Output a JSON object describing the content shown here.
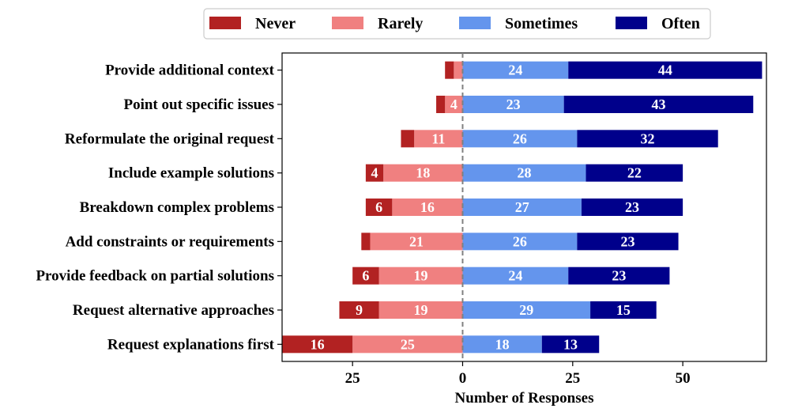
{
  "chart_data": {
    "type": "diverging-stacked-bar",
    "title": "",
    "xlabel": "Number of Responses",
    "ylabel": "",
    "xlim": [
      -41,
      69
    ],
    "xticks": [
      {
        "value": -25,
        "label": "25"
      },
      {
        "value": 0,
        "label": "0"
      },
      {
        "value": 25,
        "label": "25"
      },
      {
        "value": 50,
        "label": "50"
      }
    ],
    "legend": {
      "placement": "top-center",
      "entries": [
        {
          "name": "Never",
          "color": "#b22222"
        },
        {
          "name": "Rarely",
          "color": "#f08080"
        },
        {
          "name": "Sometimes",
          "color": "#6495ed"
        },
        {
          "name": "Often",
          "color": "#00008b"
        }
      ]
    },
    "categories": [
      "Provide additional context",
      "Point out specific issues",
      "Reformulate the original request",
      "Include example solutions",
      "Breakdown complex problems",
      "Add constraints or requirements",
      "Provide feedback on partial solutions",
      "Request alternative approaches",
      "Request explanations first"
    ],
    "series": [
      {
        "name": "Never",
        "color": "#b22222",
        "values": [
          2,
          2,
          3,
          4,
          6,
          2,
          6,
          9,
          16
        ],
        "show_labels": [
          false,
          false,
          false,
          true,
          true,
          false,
          true,
          true,
          true
        ]
      },
      {
        "name": "Rarely",
        "color": "#f08080",
        "values": [
          2,
          4,
          11,
          18,
          16,
          21,
          19,
          19,
          25
        ],
        "show_labels": [
          false,
          true,
          true,
          true,
          true,
          true,
          true,
          true,
          true
        ]
      },
      {
        "name": "Sometimes",
        "color": "#6495ed",
        "values": [
          24,
          23,
          26,
          28,
          27,
          26,
          24,
          29,
          18
        ],
        "show_labels": [
          true,
          true,
          true,
          true,
          true,
          true,
          true,
          true,
          true
        ]
      },
      {
        "name": "Often",
        "color": "#00008b",
        "values": [
          44,
          43,
          32,
          22,
          23,
          23,
          23,
          15,
          13
        ],
        "show_labels": [
          true,
          true,
          true,
          true,
          true,
          true,
          true,
          true,
          true
        ]
      }
    ],
    "negative_series": [
      "Never",
      "Rarely"
    ],
    "positive_series": [
      "Sometimes",
      "Often"
    ],
    "zero_line": "dashed"
  }
}
